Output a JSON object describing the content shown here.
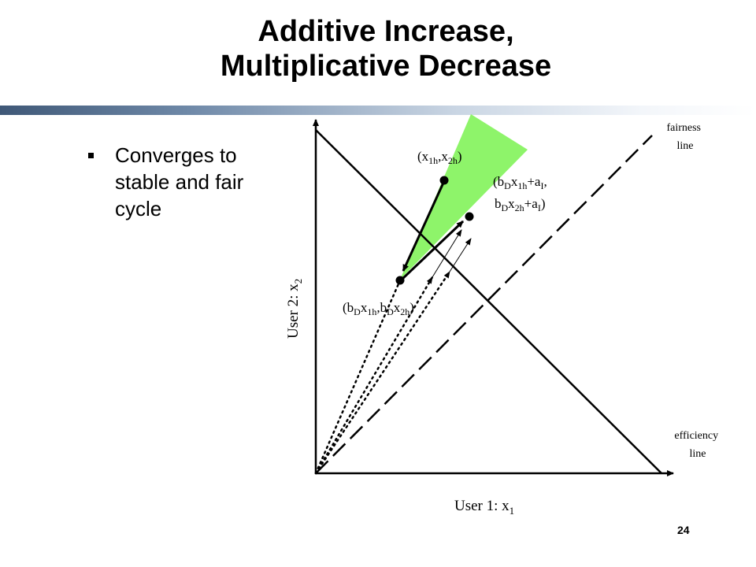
{
  "slide": {
    "title_line1": "Additive Increase,",
    "title_line2": "Multiplicative Decrease",
    "bullet_text": "Converges to stable and fair cycle",
    "page_number": "24"
  },
  "diagram": {
    "fairness_label_1": "fairness",
    "fairness_label_2": "line",
    "efficiency_label_1": "efficiency",
    "efficiency_label_2": "line",
    "xaxis_label": "User 1: x",
    "xaxis_sub": "1",
    "yaxis_label": "User 2: x",
    "yaxis_sub": "2",
    "point_top": {
      "open": "(x",
      "sub1": "1h",
      "comma": ",x",
      "sub2": "2h",
      "close": ")"
    },
    "point_right": {
      "l1_a": "(b",
      "l1_D": "D",
      "l1_b": "x",
      "l1_sub": "1h",
      "l1_c": "+a",
      "l1_I": "I",
      "l1_d": ",",
      "l2_a": "b",
      "l2_D": "D",
      "l2_b": "x",
      "l2_sub": "2h",
      "l2_c": "+a",
      "l2_I": "I",
      "l2_d": ")"
    },
    "point_bottom": {
      "a": "(b",
      "D1": "D",
      "b": "x",
      "sub1": "1h",
      "c": ",b",
      "D2": "D",
      "d": "x",
      "sub2": "2h",
      "e": ")"
    },
    "colors": {
      "region": "#8ef46a",
      "rule_dark": "#3f5877"
    }
  }
}
